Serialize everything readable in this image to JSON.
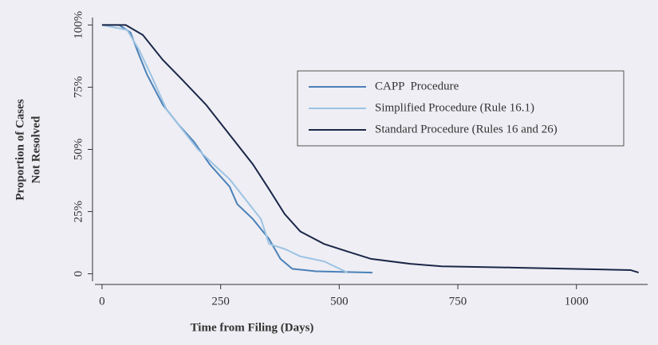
{
  "chart_data": {
    "type": "line",
    "x_label": "Time from Filing (Days)",
    "y_label": [
      "Proportion of Cases",
      "Not Resolved"
    ],
    "xlim": [
      -15,
      1150
    ],
    "ylim": [
      -3,
      103
    ],
    "xticks": [
      0,
      250,
      500,
      750,
      1000
    ],
    "yticks": [
      {
        "value": 0,
        "label": "0"
      },
      {
        "value": 25,
        "label": "25%"
      },
      {
        "value": 50,
        "label": "50%"
      },
      {
        "value": 75,
        "label": "75%"
      },
      {
        "value": 100,
        "label": "100%"
      }
    ],
    "legend": "upper right",
    "series": [
      {
        "name": "CAPP  Procedure",
        "color": "#4b80b8",
        "x": [
          0,
          36,
          60,
          78,
          95,
          128,
          161,
          194,
          227,
          269,
          285,
          318,
          352,
          376,
          401,
          451,
          570
        ],
        "values": [
          100,
          100,
          97,
          88,
          80,
          68,
          60,
          53,
          44,
          35,
          28,
          22,
          14,
          6,
          2,
          1,
          0.5
        ]
      },
      {
        "name": "Simplified Procedure (Rule 16.1)",
        "color": "#9cc3e2",
        "x": [
          0,
          53,
          78,
          103,
          136,
          169,
          202,
          235,
          269,
          302,
          335,
          352,
          385,
          418,
          468,
          501,
          517
        ],
        "values": [
          100,
          98,
          90,
          80,
          66,
          58,
          50,
          44,
          38,
          30,
          22,
          12,
          10,
          7,
          5,
          2,
          0.5
        ]
      },
      {
        "name": "Standard Procedure (Rules 16 and 26)",
        "color": "#1b2748",
        "x": [
          0,
          50,
          86,
          128,
          169,
          219,
          252,
          285,
          318,
          352,
          385,
          418,
          468,
          517,
          567,
          650,
          716,
          866,
          1114,
          1131
        ],
        "values": [
          100,
          100,
          96,
          86,
          78,
          68,
          60,
          52,
          44,
          34,
          24,
          17,
          12,
          9,
          6,
          4,
          3,
          2.5,
          1.5,
          0.5
        ]
      }
    ]
  }
}
